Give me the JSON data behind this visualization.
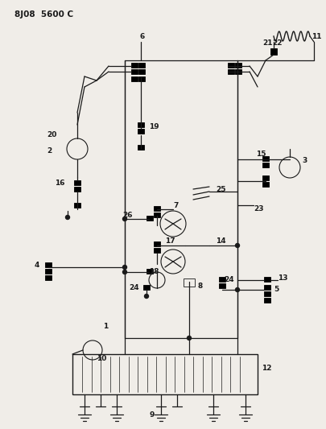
{
  "title": "8J08  5600 C",
  "bg_color": "#f0ede8",
  "line_color": "#1a1a1a",
  "title_fontsize": 7.5,
  "label_fontsize": 6.5,
  "fig_width": 4.05,
  "fig_height": 5.33,
  "dpi": 100
}
